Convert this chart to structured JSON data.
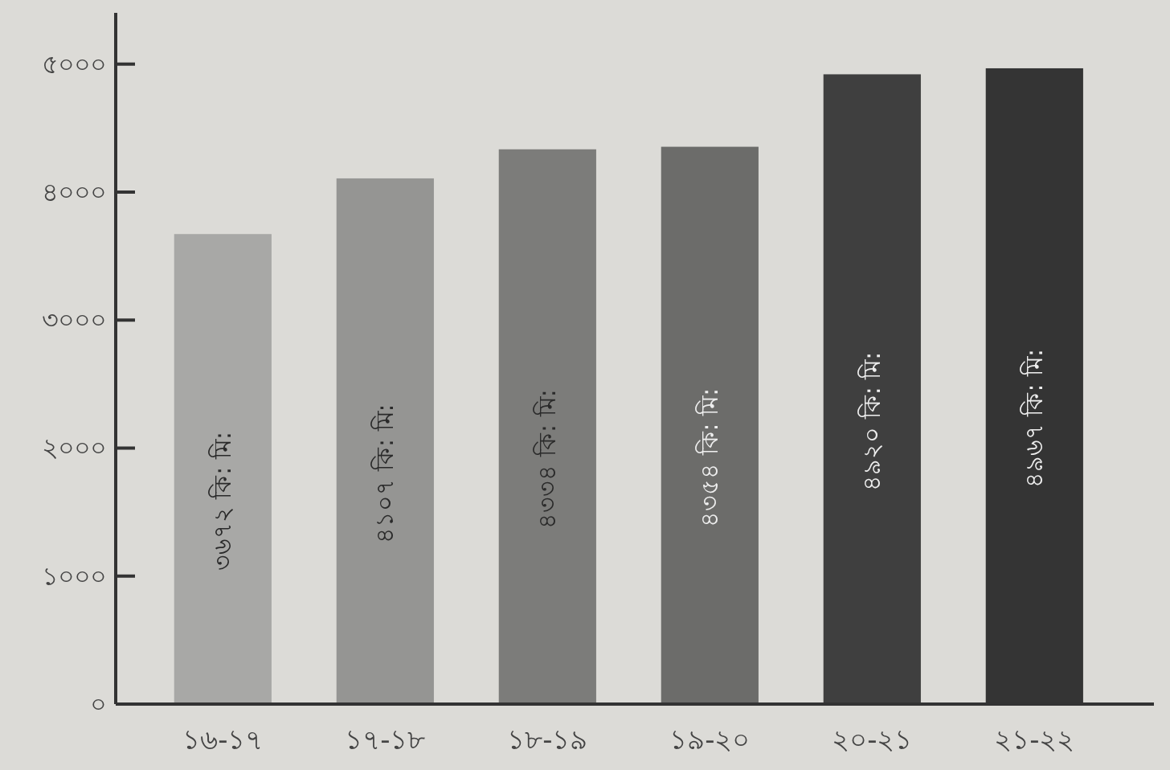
{
  "chart_data": {
    "type": "bar",
    "categories": [
      "১৬-১৭",
      "১৭-১৮",
      "১৮-১৯",
      "১৯-২০",
      "২০-২১",
      "২১-২২"
    ],
    "values": [
      3672,
      4107,
      4334,
      4354,
      4920,
      4967
    ],
    "value_labels": [
      "৩৬৭২ কি: মি:",
      "৪১০৭ কি: মি:",
      "৪৩৩৪ কি: মি:",
      "৪৩৫৪ কি: মি:",
      "৪৯২০ কি: মি:",
      "৪৯৬৭ কি: মি:"
    ],
    "colors": [
      "#a8a8a6",
      "#959593",
      "#7c7c7a",
      "#6c6c6a",
      "#3f3f3f",
      "#343434"
    ],
    "ylim": [
      0,
      5400
    ],
    "yticks": [
      {
        "value": 0,
        "label": "০"
      },
      {
        "value": 1000,
        "label": "১০০০"
      },
      {
        "value": 2000,
        "label": "২০০০"
      },
      {
        "value": 3000,
        "label": "৩০০০"
      },
      {
        "value": 4000,
        "label": "৪০০০"
      },
      {
        "value": 5000,
        "label": "৫০০০"
      }
    ],
    "grid": false
  }
}
